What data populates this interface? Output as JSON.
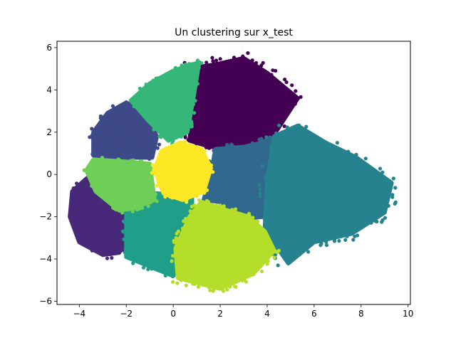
{
  "chart_data": {
    "type": "scatter",
    "title": "Un clustering sur x_test",
    "xlabel": "",
    "ylabel": "",
    "xlim": [
      -4.95,
      10.1
    ],
    "ylim": [
      -6.15,
      6.3
    ],
    "xticks": [
      -4,
      -2,
      0,
      2,
      4,
      6,
      8,
      10
    ],
    "yticks": [
      -6,
      -4,
      -2,
      0,
      2,
      4,
      6
    ],
    "grid": false,
    "legend": "none",
    "clusters": [
      {
        "color": "#440154",
        "center": [
          2.6,
          2.8
        ],
        "polygon": [
          [
            0.6,
            5.0
          ],
          [
            1.8,
            5.2
          ],
          [
            3.0,
            5.5
          ],
          [
            4.0,
            4.8
          ],
          [
            5.3,
            3.6
          ],
          [
            4.3,
            1.9
          ],
          [
            3.2,
            1.5
          ],
          [
            1.6,
            1.3
          ],
          [
            0.7,
            1.6
          ],
          [
            0.8,
            3.5
          ]
        ],
        "n": 520
      },
      {
        "color": "#482878",
        "center": [
          -3.9,
          -1.9
        ],
        "polygon": [
          [
            -4.3,
            -0.8
          ],
          [
            -3.7,
            -0.2
          ],
          [
            -3.1,
            -0.6
          ],
          [
            -2.0,
            -1.4
          ],
          [
            -1.9,
            -2.9
          ],
          [
            -2.3,
            -3.7
          ],
          [
            -3.0,
            -3.8
          ],
          [
            -4.0,
            -3.2
          ],
          [
            -4.4,
            -2.0
          ]
        ],
        "n": 360
      },
      {
        "color": "#3e4989",
        "center": [
          -2.0,
          2.0
        ],
        "polygon": [
          [
            -3.4,
            2.0
          ],
          [
            -2.8,
            2.9
          ],
          [
            -2.0,
            3.4
          ],
          [
            -1.2,
            2.9
          ],
          [
            -0.7,
            1.8
          ],
          [
            -0.9,
            0.8
          ],
          [
            -2.2,
            0.8
          ],
          [
            -3.4,
            0.9
          ]
        ],
        "n": 330
      },
      {
        "color": "#31688e",
        "center": [
          3.2,
          -0.3
        ],
        "polygon": [
          [
            1.8,
            1.2
          ],
          [
            3.0,
            1.3
          ],
          [
            4.2,
            1.6
          ],
          [
            4.1,
            -0.4
          ],
          [
            3.8,
            -2.0
          ],
          [
            3.0,
            -2.1
          ],
          [
            2.0,
            -1.3
          ],
          [
            1.3,
            -1.2
          ],
          [
            1.6,
            0.0
          ]
        ],
        "n": 370
      },
      {
        "color": "#26828e",
        "center": [
          6.5,
          -0.7
        ],
        "polygon": [
          [
            4.3,
            1.8
          ],
          [
            5.3,
            2.3
          ],
          [
            6.5,
            1.5
          ],
          [
            7.8,
            0.8
          ],
          [
            9.3,
            -0.4
          ],
          [
            9.0,
            -1.8
          ],
          [
            7.6,
            -2.8
          ],
          [
            6.0,
            -3.2
          ],
          [
            4.9,
            -4.2
          ],
          [
            3.9,
            -2.6
          ],
          [
            4.0,
            -0.3
          ]
        ],
        "n": 780
      },
      {
        "color": "#1f9e89",
        "center": [
          -0.9,
          -2.8
        ],
        "polygon": [
          [
            -2.0,
            -1.8
          ],
          [
            -0.7,
            -0.9
          ],
          [
            0.8,
            -1.0
          ],
          [
            0.8,
            -2.3
          ],
          [
            0.4,
            -3.3
          ],
          [
            0.0,
            -4.8
          ],
          [
            -0.9,
            -4.4
          ],
          [
            -2.0,
            -3.9
          ]
        ],
        "n": 380
      },
      {
        "color": "#35b779",
        "center": [
          -0.3,
          3.4
        ],
        "polygon": [
          [
            -1.8,
            3.5
          ],
          [
            -1.0,
            4.3
          ],
          [
            0.0,
            4.9
          ],
          [
            1.1,
            5.3
          ],
          [
            0.9,
            3.9
          ],
          [
            0.6,
            2.0
          ],
          [
            -0.2,
            1.6
          ],
          [
            -1.1,
            2.6
          ]
        ],
        "n": 360
      },
      {
        "color": "#6ece58",
        "center": [
          -2.4,
          -0.3
        ],
        "polygon": [
          [
            -3.7,
            0.2
          ],
          [
            -3.4,
            0.7
          ],
          [
            -2.0,
            0.6
          ],
          [
            -1.0,
            0.5
          ],
          [
            -0.8,
            -1.2
          ],
          [
            -1.7,
            -1.6
          ],
          [
            -2.3,
            -1.7
          ],
          [
            -3.3,
            -0.8
          ]
        ],
        "n": 300
      },
      {
        "color": "#b5de2b",
        "center": [
          2.1,
          -3.1
        ],
        "polygon": [
          [
            1.2,
            -1.3
          ],
          [
            2.0,
            -1.6
          ],
          [
            3.2,
            -2.0
          ],
          [
            3.9,
            -2.7
          ],
          [
            4.3,
            -3.6
          ],
          [
            3.4,
            -4.7
          ],
          [
            2.0,
            -5.4
          ],
          [
            0.2,
            -4.9
          ],
          [
            0.1,
            -3.5
          ],
          [
            0.7,
            -2.0
          ]
        ],
        "n": 560
      },
      {
        "color": "#fde725",
        "center": [
          0.4,
          0.1
        ],
        "polygon": [
          [
            -0.8,
            0.2
          ],
          [
            -0.5,
            1.1
          ],
          [
            0.3,
            1.5
          ],
          [
            1.2,
            1.2
          ],
          [
            1.6,
            0.3
          ],
          [
            1.3,
            -0.8
          ],
          [
            0.4,
            -1.2
          ],
          [
            -0.4,
            -0.9
          ]
        ],
        "n": 280
      }
    ]
  }
}
